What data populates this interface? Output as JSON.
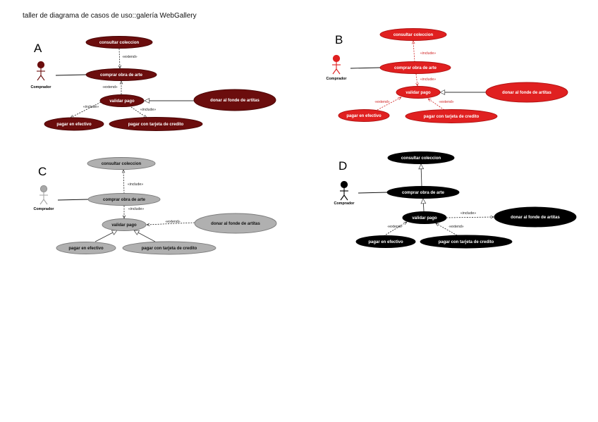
{
  "title": "taller de diagrama de casos de uso::galería WebGallery",
  "diagrams": [
    {
      "letter": "A",
      "actor": "Comprador",
      "colors": {
        "fill": "#6b0d0d",
        "stroke": "#4a0505",
        "text": "#ffffff",
        "actor": "#6b0d0d",
        "rel": "#222222"
      },
      "use_cases": {
        "consultar": "consultar coleccion",
        "comprar": "comprar obra de arte",
        "validar": "validar pago",
        "donar": "donar al fonde de artitas",
        "efectivo": "pagar en efectivo",
        "tarjeta": "pagar con tarjeta de credito"
      },
      "relations": {
        "r1": "«extend»",
        "r2": "«extend»",
        "r3": "«include»",
        "r4": "«include»"
      }
    },
    {
      "letter": "B",
      "actor": "Comprador",
      "colors": {
        "fill": "#e02020",
        "stroke": "#b01010",
        "text": "#ffffff",
        "actor": "#e02020",
        "rel": "#d02020"
      },
      "use_cases": {
        "consultar": "consultar coleccion",
        "comprar": "comprar obra de arte",
        "validar": "validar pago",
        "donar": "donar al fonde de artitas",
        "efectivo": "pagar en efectivo",
        "tarjeta": "pagar con tarjeta de credito"
      },
      "relations": {
        "r1": "«include»",
        "r2": "«include»",
        "r3": "«extend»",
        "r4": "«extend»"
      }
    },
    {
      "letter": "C",
      "actor": "Comprador",
      "colors": {
        "fill": "#b0b0b0",
        "stroke": "#7a7a7a",
        "text": "#111111",
        "actor": "#a8a8a8",
        "rel": "#222222"
      },
      "use_cases": {
        "consultar": "consultar coleccion",
        "comprar": "comprar obra de arte",
        "validar": "validar pago",
        "donar": "donar al fonde de artitas",
        "efectivo": "pagar en efectivo",
        "tarjeta": "pagar con tarjeta de credito"
      },
      "relations": {
        "r1": "«include»",
        "r2": "«include»",
        "r3": "«extend»"
      }
    },
    {
      "letter": "D",
      "actor": "Comprador",
      "colors": {
        "fill": "#000000",
        "stroke": "#000000",
        "text": "#ffffff",
        "actor": "#000000",
        "rel": "#222222"
      },
      "use_cases": {
        "consultar": "consultar coleccion",
        "comprar": "comprar obra de arte",
        "validar": "validar pago",
        "donar": "donar al fonde de artitas",
        "efectivo": "pagar en efectivo",
        "tarjeta": "pagar con tarjeta de credito"
      },
      "relations": {
        "r1": "«include»",
        "r2": "«extend»",
        "r3": "«extend»"
      }
    }
  ]
}
